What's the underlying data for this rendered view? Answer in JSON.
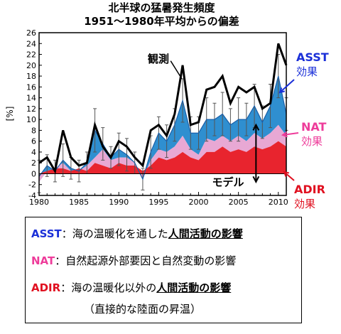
{
  "title_line1": "北半球の猛暑発生頻度",
  "title_line2": "1951～1980年平均からの偏差",
  "colors": {
    "asst": "#2f8fd0",
    "nat": "#e8a8d4",
    "adir": "#e8242e",
    "asst_text": "#1a2fd8",
    "nat_text": "#ee3c9a",
    "adir_text": "#e01020"
  },
  "chart_data": {
    "type": "area",
    "title": "北半球の猛暑発生頻度",
    "subtitle": "1951～1980年平均からの偏差",
    "ylabel": "[%]",
    "xlim": [
      1980,
      2011
    ],
    "ylim": [
      -4,
      26
    ],
    "x_ticks": [
      1980,
      1985,
      1990,
      1995,
      2000,
      2005,
      2010
    ],
    "y_ticks": [
      -4,
      -2,
      0,
      2,
      4,
      6,
      8,
      10,
      12,
      14,
      16,
      18,
      20,
      22,
      24,
      26
    ],
    "x": [
      1980,
      1981,
      1982,
      1983,
      1984,
      1985,
      1986,
      1987,
      1988,
      1989,
      1990,
      1991,
      1992,
      1993,
      1994,
      1995,
      1996,
      1997,
      1998,
      1999,
      2000,
      2001,
      2002,
      2003,
      2004,
      2005,
      2006,
      2007,
      2008,
      2009,
      2010,
      2011
    ],
    "series": [
      {
        "name": "観測",
        "values": [
          2,
          3,
          0.5,
          8,
          3,
          1.5,
          2,
          9,
          5,
          3,
          6,
          5,
          3,
          1.5,
          8,
          9,
          7,
          11,
          20,
          9,
          9.5,
          15.5,
          16,
          18,
          13,
          16,
          15,
          16,
          12,
          13,
          24,
          20
        ]
      },
      {
        "name": "ADIR",
        "values": [
          0,
          0.5,
          1,
          1,
          0.5,
          1,
          0.5,
          2,
          1.5,
          1,
          2,
          1.5,
          1.5,
          0.5,
          1.5,
          3,
          2.5,
          3,
          4,
          3,
          2.5,
          4,
          4,
          5,
          4,
          4.5,
          4,
          5,
          4.5,
          5,
          6,
          5
        ]
      },
      {
        "name": "NAT",
        "values": [
          -1.5,
          0,
          0,
          1,
          0,
          -0.5,
          1,
          1,
          3,
          1.5,
          1,
          1.5,
          0.5,
          -1.5,
          1,
          1.5,
          1.5,
          2,
          3,
          1.5,
          1,
          2.5,
          2,
          2,
          2,
          2.5,
          2,
          2.5,
          2,
          2.5,
          3,
          2
        ]
      },
      {
        "name": "ASST",
        "values": [
          1,
          1,
          -0.5,
          0.5,
          0.5,
          0,
          0.5,
          5,
          1,
          0.5,
          1.5,
          0.5,
          0,
          0,
          1.5,
          3,
          2,
          4,
          6.5,
          3,
          4,
          3.5,
          4,
          4,
          3,
          3,
          4,
          5,
          3,
          5,
          9,
          4
        ]
      }
    ],
    "error_bars": [
      3,
      2,
      2,
      3,
      2,
      2,
      2,
      4,
      3,
      2,
      3,
      3,
      2,
      2,
      3,
      3,
      3,
      3,
      4,
      3,
      3,
      4,
      3,
      4,
      3,
      4,
      3,
      4,
      3,
      4,
      4,
      3
    ],
    "annotations": [
      "観測",
      "モデル"
    ]
  },
  "labels": {
    "observed": "観測",
    "model": "モデル",
    "asst_line1": "ASST",
    "asst_line2": "効果",
    "nat_line1": "NAT",
    "nat_line2": "効果",
    "adir_line1": "ADIR",
    "adir_line2": "効果"
  },
  "legend": {
    "asst_code": "ASST",
    "asst_text": "：海の温暖化を通した",
    "asst_emph": "人間活動の影響",
    "nat_code": "NAT",
    "nat_text": "：自然起源外部要因と自然変動の影響",
    "adir_code": "ADIR",
    "adir_text": "：海の温暖化以外の",
    "adir_emph": "人間活動の影響",
    "adir_note": "（直接的な陸面の昇温）"
  }
}
